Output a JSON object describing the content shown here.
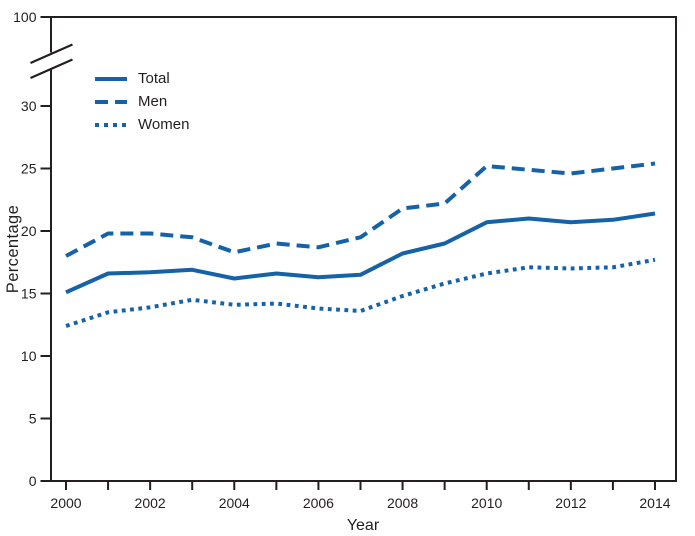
{
  "chart_data": {
    "type": "line",
    "xlabel": "Year",
    "ylabel": "Percentage",
    "x": [
      2000,
      2001,
      2002,
      2003,
      2004,
      2005,
      2006,
      2007,
      2008,
      2009,
      2010,
      2011,
      2012,
      2013,
      2014
    ],
    "series": [
      {
        "name": "Total",
        "line_style": "solid",
        "values": [
          15.1,
          16.6,
          16.7,
          16.9,
          16.2,
          16.6,
          16.3,
          16.5,
          18.2,
          19.0,
          20.7,
          21.0,
          20.7,
          20.9,
          21.4
        ]
      },
      {
        "name": "Men",
        "line_style": "dashed",
        "values": [
          18.0,
          19.8,
          19.8,
          19.5,
          18.3,
          19.0,
          18.7,
          19.5,
          21.8,
          22.2,
          25.2,
          24.9,
          24.6,
          25.0,
          25.4
        ]
      },
      {
        "name": "Women",
        "line_style": "dotted",
        "values": [
          12.4,
          13.5,
          13.9,
          14.5,
          14.1,
          14.2,
          13.8,
          13.6,
          14.8,
          15.8,
          16.6,
          17.1,
          17.0,
          17.1,
          17.7
        ]
      }
    ],
    "y_ticks_linear": [
      0,
      5,
      10,
      15,
      20,
      25,
      30
    ],
    "y_tick_above_break": 100,
    "y_axis_break": true,
    "ylim_linear": [
      0,
      32.5
    ],
    "x_ticks_all": [
      2000,
      2001,
      2002,
      2003,
      2004,
      2005,
      2006,
      2007,
      2008,
      2009,
      2010,
      2011,
      2012,
      2013,
      2014
    ],
    "x_tick_labels": [
      2000,
      2002,
      2004,
      2006,
      2008,
      2010,
      2012,
      2014
    ],
    "legend": {
      "position": "top-left",
      "entries": [
        "Total",
        "Men",
        "Women"
      ]
    },
    "grid": false,
    "colors": {
      "series": "#1562a8",
      "axis": "#231f20",
      "text": "#231f20",
      "background": "#ffffff"
    }
  }
}
